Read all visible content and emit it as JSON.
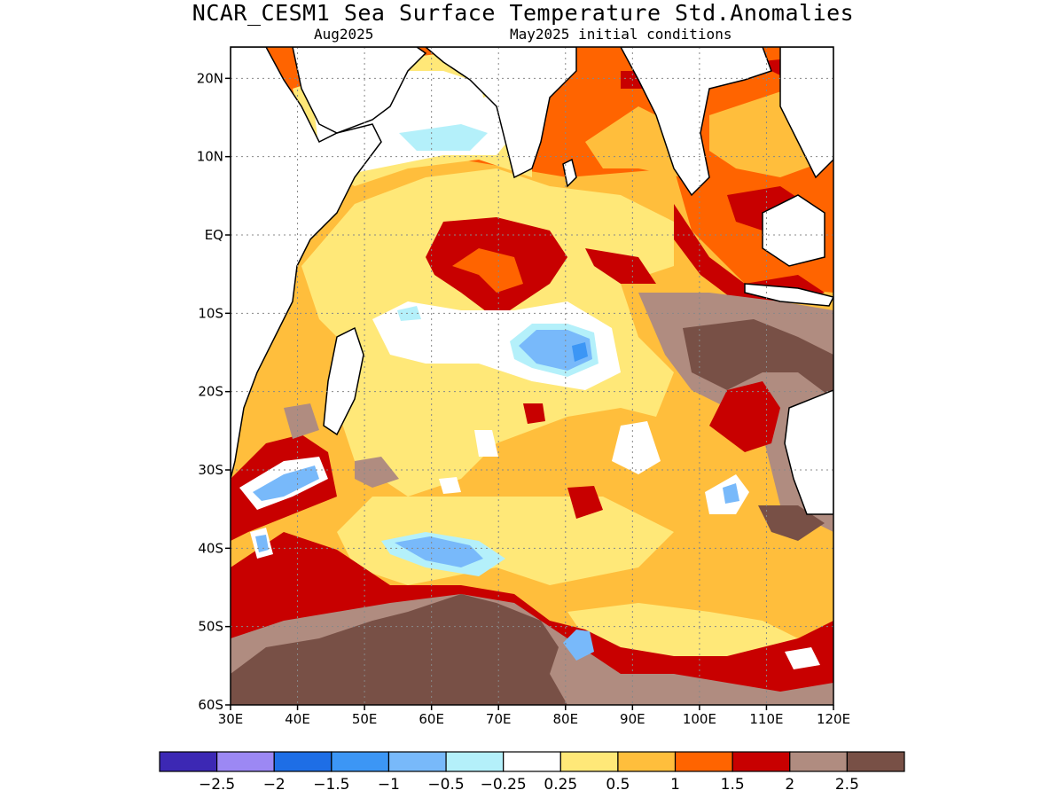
{
  "title": "NCAR_CESM1 Sea Surface Temperature Std.Anomalies",
  "subtitle_left": "Aug2025",
  "subtitle_right": "May2025 initial conditions",
  "map": {
    "lon_range": [
      30,
      120
    ],
    "lat_range": [
      -60,
      24
    ],
    "lat_ticks": [
      {
        "value": 20,
        "label": "20N"
      },
      {
        "value": 10,
        "label": "10N"
      },
      {
        "value": 0,
        "label": "EQ"
      },
      {
        "value": -10,
        "label": "10S"
      },
      {
        "value": -20,
        "label": "20S"
      },
      {
        "value": -30,
        "label": "30S"
      },
      {
        "value": -40,
        "label": "40S"
      },
      {
        "value": -50,
        "label": "50S"
      },
      {
        "value": -60,
        "label": "60S"
      }
    ],
    "lon_ticks": [
      {
        "value": 30,
        "label": "30E"
      },
      {
        "value": 40,
        "label": "40E"
      },
      {
        "value": 50,
        "label": "50E"
      },
      {
        "value": 60,
        "label": "60E"
      },
      {
        "value": 70,
        "label": "70E"
      },
      {
        "value": 80,
        "label": "80E"
      },
      {
        "value": 90,
        "label": "90E"
      },
      {
        "value": 100,
        "label": "100E"
      },
      {
        "value": 110,
        "label": "110E"
      },
      {
        "value": 120,
        "label": "120E"
      }
    ],
    "grid": true
  },
  "colorbar": {
    "colors": [
      "#3c28b4",
      "#9c88f4",
      "#1e6ee6",
      "#3c96f5",
      "#78b9fa",
      "#b4f0fa",
      "#ffffff",
      "#ffe878",
      "#ffbe3c",
      "#ff6400",
      "#c80000",
      "#b08c80",
      "#785046"
    ],
    "labels": [
      "-2.5",
      "-2",
      "-1.5",
      "-1",
      "-0.5",
      "-0.25",
      "0.25",
      "0.5",
      "1",
      "1.5",
      "2",
      "2.5"
    ]
  },
  "land_color": "#ffffff",
  "coast_color": "#000000"
}
